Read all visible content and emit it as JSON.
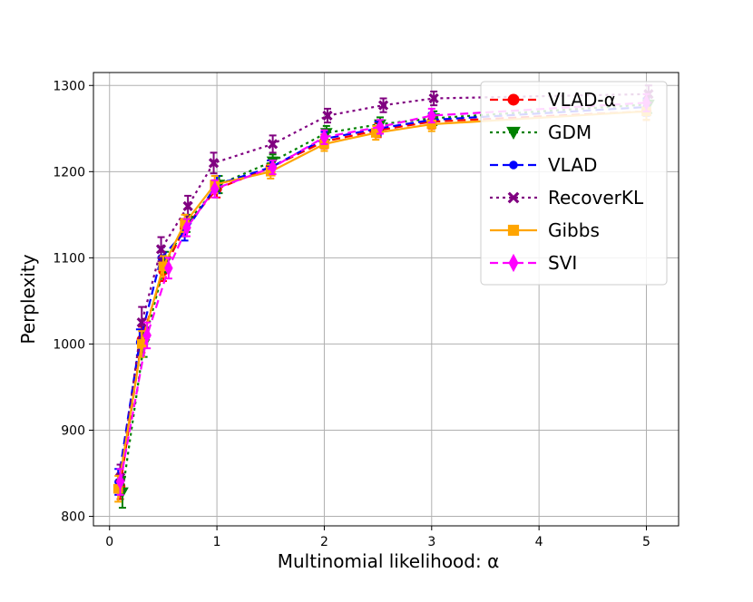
{
  "chart_data": {
    "type": "line",
    "title": "",
    "xlabel": "Multinomial likelihood: α",
    "ylabel": "Perplexity",
    "xlim": [
      -0.15,
      5.3
    ],
    "ylim": [
      789,
      1315
    ],
    "xticks": [
      0,
      1,
      2,
      3,
      4,
      5
    ],
    "xtick_labels": [
      "0",
      "1",
      "2",
      "3",
      "4",
      "5"
    ],
    "yticks": [
      800,
      900,
      1000,
      1100,
      1200,
      1300
    ],
    "ytick_labels": [
      "800",
      "900",
      "1000",
      "1100",
      "1200",
      "1300"
    ],
    "grid": true,
    "legend_position": "top-right",
    "series": [
      {
        "name": "VLAD-α",
        "color": "#ff0000",
        "dash": "dashed",
        "marker": "circle",
        "x": [
          0.1,
          0.3,
          0.5,
          0.7,
          1.0,
          1.5,
          2.0,
          2.5,
          3.0,
          5.0
        ],
        "y": [
          835,
          1005,
          1085,
          1135,
          1180,
          1205,
          1235,
          1248,
          1258,
          1270
        ],
        "err": [
          15,
          15,
          12,
          10,
          10,
          8,
          8,
          8,
          8,
          10
        ]
      },
      {
        "name": "GDM",
        "color": "#008000",
        "dash": "dotted",
        "marker": "triangle-down",
        "x": [
          0.12,
          0.32,
          0.52,
          0.72,
          1.02,
          1.52,
          2.02,
          2.52,
          3.02,
          5.02
        ],
        "y": [
          828,
          1000,
          1095,
          1140,
          1185,
          1212,
          1245,
          1255,
          1262,
          1278
        ],
        "err": [
          18,
          15,
          12,
          10,
          10,
          8,
          8,
          8,
          8,
          10
        ]
      },
      {
        "name": "VLAD",
        "color": "#0000ff",
        "dash": "dashed",
        "marker": "circle-small",
        "x": [
          0.08,
          0.28,
          0.48,
          0.7,
          1.0,
          1.5,
          2.0,
          2.5,
          3.0,
          5.0
        ],
        "y": [
          840,
          1002,
          1100,
          1130,
          1185,
          1205,
          1238,
          1250,
          1260,
          1275
        ],
        "err": [
          15,
          15,
          12,
          10,
          10,
          8,
          8,
          8,
          8,
          10
        ]
      },
      {
        "name": "RecoverKL",
        "color": "#800080",
        "dash": "dotted",
        "marker": "x",
        "x": [
          0.1,
          0.3,
          0.48,
          0.73,
          0.97,
          1.52,
          2.03,
          2.55,
          3.02,
          5.02
        ],
        "y": [
          845,
          1025,
          1110,
          1160,
          1210,
          1232,
          1265,
          1277,
          1285,
          1290
        ],
        "err": [
          15,
          18,
          14,
          12,
          12,
          10,
          8,
          8,
          8,
          10
        ]
      },
      {
        "name": "Gibbs",
        "color": "#ffa500",
        "dash": "solid",
        "marker": "square",
        "x": [
          0.08,
          0.3,
          0.5,
          0.7,
          0.98,
          1.5,
          2.0,
          2.48,
          3.0,
          5.0
        ],
        "y": [
          832,
          1000,
          1090,
          1140,
          1185,
          1200,
          1232,
          1245,
          1255,
          1270
        ],
        "err": [
          15,
          15,
          12,
          10,
          10,
          8,
          8,
          8,
          8,
          10
        ]
      },
      {
        "name": "SVI",
        "color": "#ff00ff",
        "dash": "dashed",
        "marker": "diamond",
        "x": [
          0.1,
          0.35,
          0.55,
          0.72,
          0.98,
          1.52,
          2.0,
          2.52,
          3.0,
          5.0
        ],
        "y": [
          840,
          1010,
          1088,
          1135,
          1180,
          1205,
          1240,
          1252,
          1265,
          1280
        ],
        "err": [
          15,
          15,
          12,
          10,
          10,
          8,
          8,
          8,
          8,
          10
        ]
      }
    ]
  }
}
